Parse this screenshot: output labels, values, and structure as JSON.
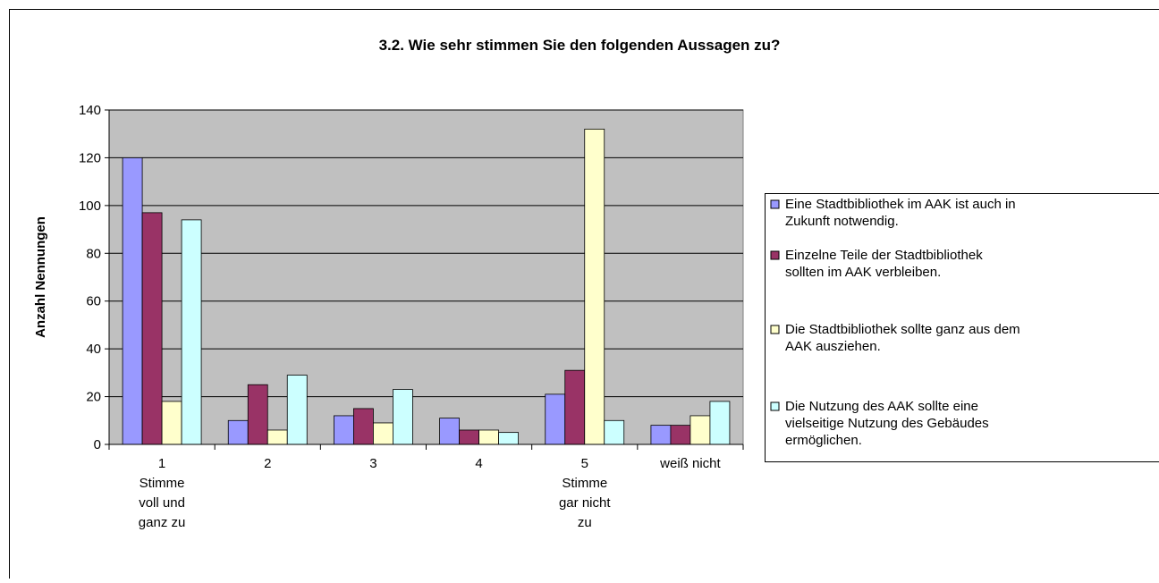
{
  "chart_data": {
    "type": "bar",
    "title": "3.2. Wie sehr stimmen Sie den folgenden Aussagen zu?",
    "y_label": "Anzahl Nennungen",
    "categories": [
      "1\nStimme\nvoll und\nganz zu",
      "2",
      "3",
      "4",
      "5\nStimme\ngar nicht\nzu",
      "weiß nicht"
    ],
    "series": [
      {
        "name": "Eine Stadtbibliothek im AAK ist auch in\nZukunft notwendig.",
        "color": "#9999ff",
        "values": [
          120,
          10,
          12,
          11,
          21,
          8
        ]
      },
      {
        "name": "Einzelne Teile der Stadtbibliothek\nsollten im AAK verbleiben.",
        "color": "#993366",
        "values": [
          97,
          25,
          15,
          6,
          31,
          8
        ]
      },
      {
        "name": "Die Stadtbibliothek sollte ganz aus dem\nAAK ausziehen.",
        "color": "#ffffcc",
        "values": [
          18,
          6,
          9,
          6,
          132,
          12
        ]
      },
      {
        "name": "Die Nutzung des AAK sollte eine\nvielseitige Nutzung des Gebäudes\nermöglichen.",
        "color": "#ccffff",
        "values": [
          94,
          29,
          23,
          5,
          10,
          18
        ]
      }
    ],
    "ylim": [
      0,
      140
    ],
    "yticks": [
      0,
      20,
      40,
      60,
      80,
      100,
      120,
      140
    ],
    "grid": true,
    "legend": "right"
  }
}
